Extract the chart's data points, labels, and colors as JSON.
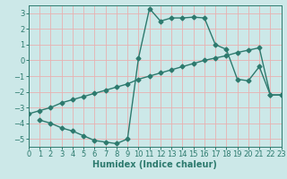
{
  "xlabel": "Humidex (Indice chaleur)",
  "bg_color": "#cce8e8",
  "line_color": "#2d7a6e",
  "grid_color": "#e8b0b0",
  "xlim": [
    0,
    23
  ],
  "ylim": [
    -5.5,
    3.5
  ],
  "xticks": [
    0,
    1,
    2,
    3,
    4,
    5,
    6,
    7,
    8,
    9,
    10,
    11,
    12,
    13,
    14,
    15,
    16,
    17,
    18,
    19,
    20,
    21,
    22,
    23
  ],
  "yticks": [
    -5,
    -4,
    -3,
    -2,
    -1,
    0,
    1,
    2,
    3
  ],
  "curve_upper_x": [
    0,
    1,
    2,
    3,
    4,
    5,
    6,
    7,
    8,
    9,
    10,
    11,
    12,
    13,
    14,
    15,
    16,
    17,
    18,
    19,
    20,
    21,
    22,
    23
  ],
  "curve_upper_y": [
    -3.4,
    -3.2,
    -3.0,
    -2.7,
    -2.5,
    -2.3,
    -2.1,
    -1.9,
    -1.7,
    -1.5,
    -1.2,
    -1.0,
    -0.8,
    -0.6,
    -0.4,
    -0.2,
    0.0,
    0.15,
    0.3,
    0.5,
    0.65,
    0.8,
    -2.2,
    -2.2
  ],
  "curve_lower_x": [
    1,
    2,
    3,
    4,
    5,
    6,
    7,
    8,
    9,
    10,
    11,
    12,
    13,
    14,
    15,
    16,
    17,
    18,
    19,
    20,
    21,
    22,
    23
  ],
  "curve_lower_y": [
    -3.8,
    -4.0,
    -4.3,
    -4.5,
    -4.8,
    -5.1,
    -5.2,
    -5.3,
    -5.0,
    0.15,
    3.3,
    2.5,
    2.7,
    2.7,
    2.75,
    2.7,
    1.0,
    0.7,
    -1.2,
    -1.3,
    -0.4,
    -2.2,
    -2.2
  ],
  "marker_size": 2.5,
  "line_width": 1.0,
  "font_size_tick": 6.0,
  "font_size_label": 7.0
}
